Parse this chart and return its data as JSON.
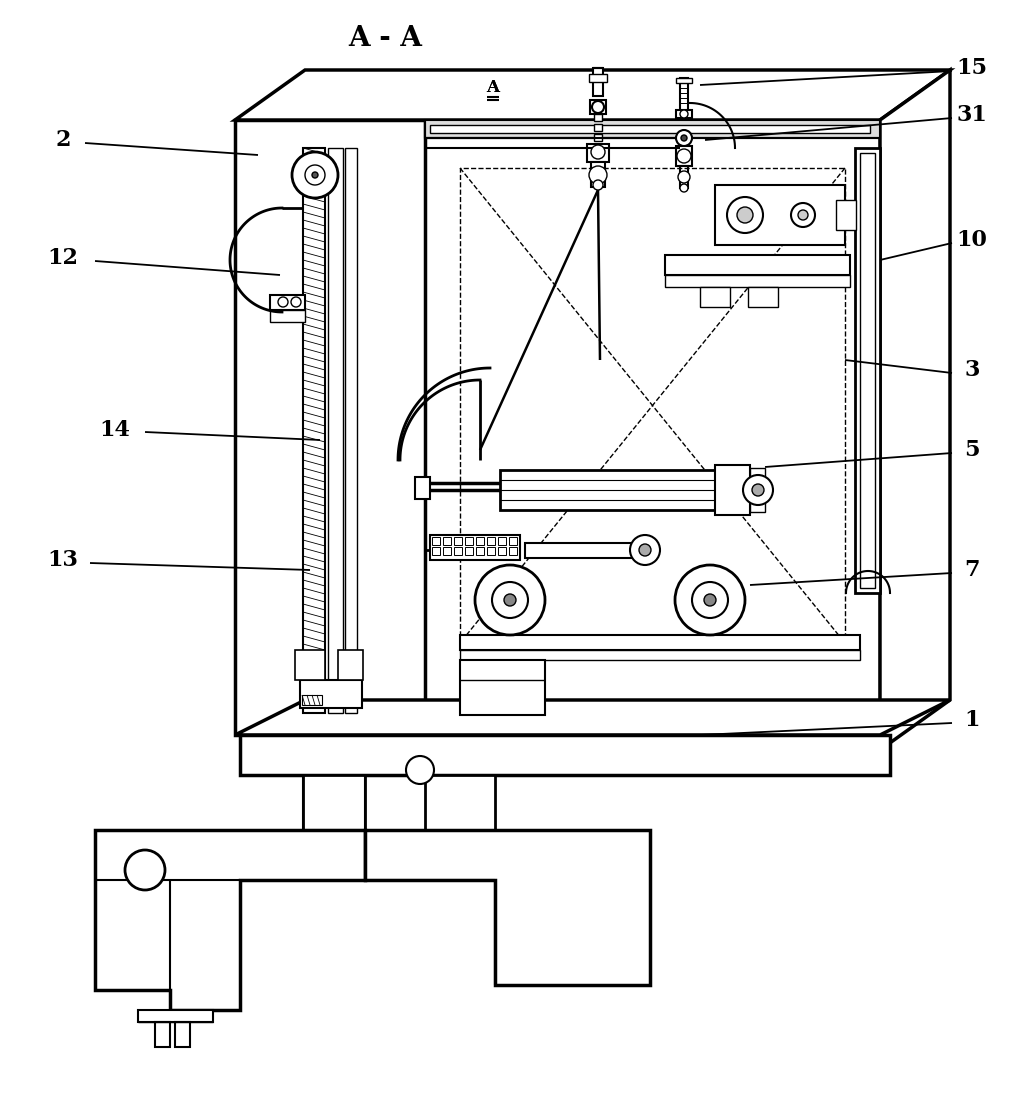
{
  "title": "A - A",
  "background_color": "#ffffff",
  "line_color": "#000000",
  "label_fontsize": 16,
  "title_fontsize": 20
}
